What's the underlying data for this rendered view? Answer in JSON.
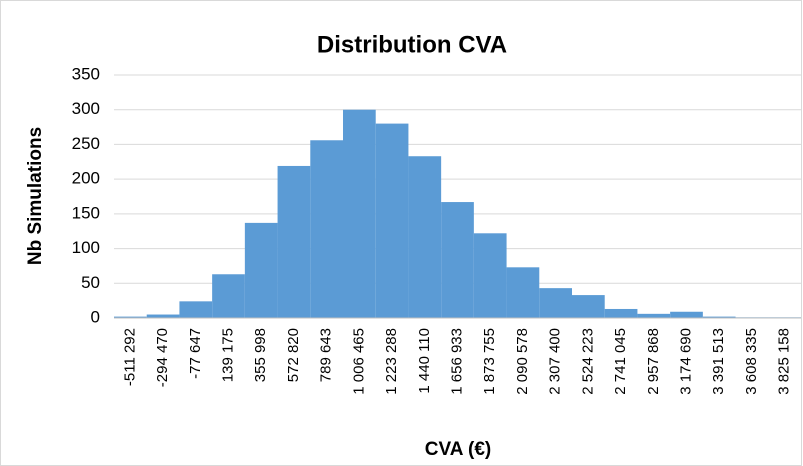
{
  "chart_data": {
    "type": "bar",
    "title": "Distribution CVA",
    "x_label": "CVA (€)",
    "y_label": "Nb Simulations",
    "categories": [
      "-511 292",
      "-294 470",
      "-77 647",
      "139 175",
      "355 998",
      "572 820",
      "789 643",
      "1 006 465",
      "1 223 288",
      "1 440 110",
      "1 656 933",
      "1 873 755",
      "2 090 578",
      "2 307 400",
      "2 524 223",
      "2 741 045",
      "2 957 868",
      "3 174 690",
      "3 391 513",
      "3 608 335",
      "3 825 158"
    ],
    "values": [
      2,
      5,
      24,
      63,
      137,
      219,
      256,
      300,
      280,
      233,
      167,
      122,
      73,
      43,
      33,
      13,
      6,
      9,
      2,
      1,
      1
    ],
    "color": "#5b9bd5",
    "ylim": [
      0,
      350
    ],
    "yticks": [
      0,
      50,
      100,
      150,
      200,
      250,
      300,
      350
    ],
    "grid": true
  }
}
